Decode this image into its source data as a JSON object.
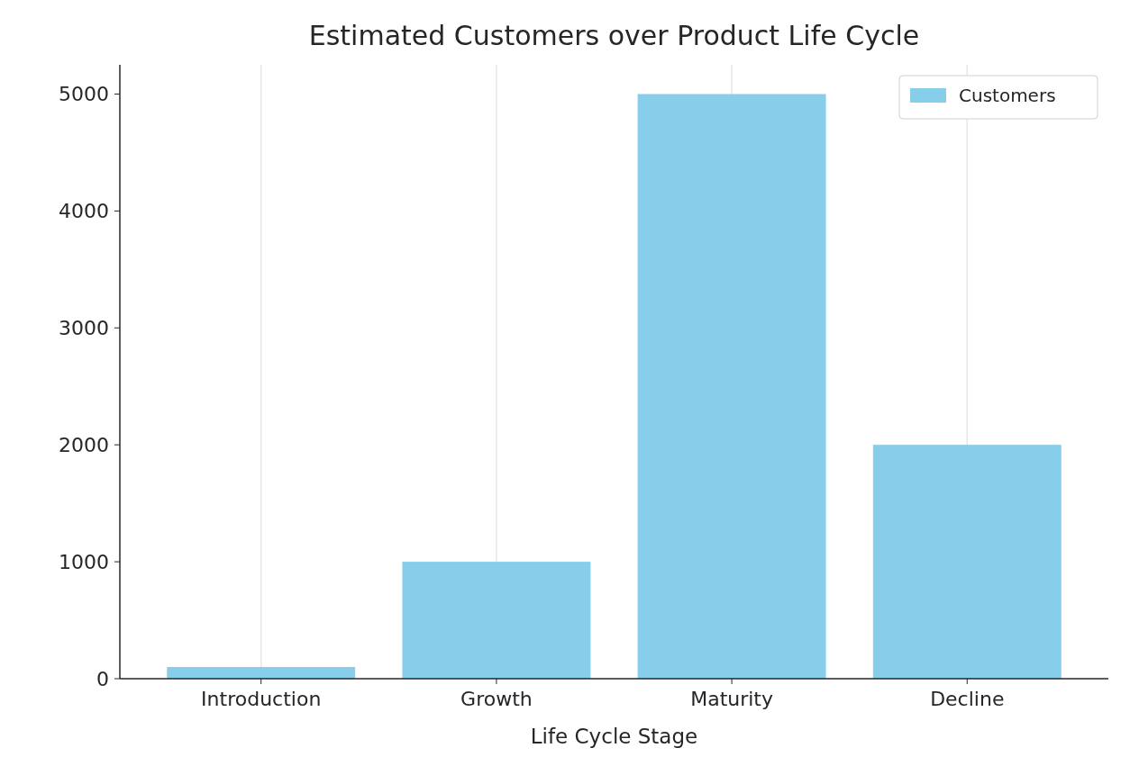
{
  "chart_data": {
    "type": "bar",
    "title": "Estimated Customers over Product Life Cycle",
    "xlabel": "Life Cycle Stage",
    "categories": [
      "Introduction",
      "Growth",
      "Maturity",
      "Decline"
    ],
    "series": [
      {
        "name": "Customers",
        "color": "#87ceeb",
        "values": [
          100,
          1000,
          5000,
          2000
        ]
      }
    ],
    "ylim": [
      0,
      5250
    ],
    "yticks": [
      0,
      1000,
      2000,
      3000,
      4000,
      5000
    ],
    "grid": "x",
    "legend": "top right"
  }
}
